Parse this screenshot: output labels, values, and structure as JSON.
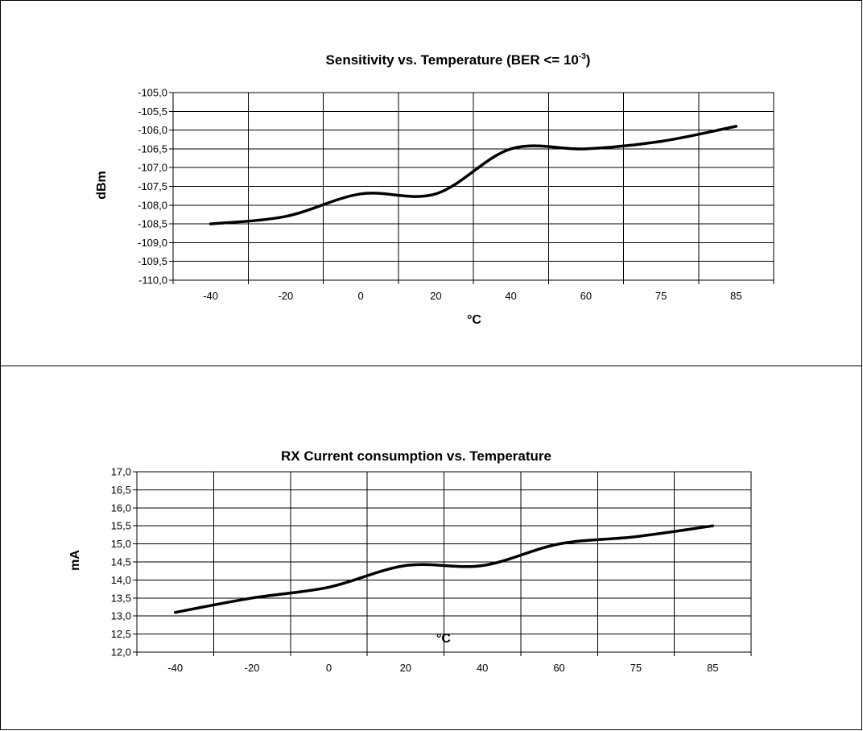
{
  "chart_data": [
    {
      "type": "line",
      "title": "Sensitivity vs. Temperature (BER <= 10",
      "title_superscript": "-3",
      "title_suffix": ")",
      "xlabel": "°C",
      "ylabel": "dBm",
      "categories": [
        "-40",
        "-20",
        "0",
        "20",
        "40",
        "60",
        "75",
        "85"
      ],
      "x": [
        -40,
        -20,
        0,
        20,
        40,
        60,
        75,
        85
      ],
      "y_tick_labels": [
        "-105,0",
        "-105,5",
        "-106,0",
        "-106,5",
        "-107,0",
        "-107,5",
        "-108,0",
        "-108,5",
        "-109,0",
        "-109,5",
        "-110,0"
      ],
      "ylim": [
        -110,
        -105
      ],
      "grid": true,
      "series": [
        {
          "values": [
            -108.5,
            -108.3,
            -107.7,
            -107.7,
            -106.5,
            -106.5,
            -106.3,
            -105.9
          ]
        }
      ]
    },
    {
      "type": "line",
      "title": "RX Current consumption vs. Temperature",
      "xlabel": "°C",
      "ylabel": "mA",
      "categories": [
        "-40",
        "-20",
        "0",
        "20",
        "40",
        "60",
        "75",
        "85"
      ],
      "x": [
        -40,
        -20,
        0,
        20,
        40,
        60,
        75,
        85
      ],
      "y_tick_labels": [
        "17,0",
        "16,5",
        "16,0",
        "15,5",
        "15,0",
        "14,5",
        "14,0",
        "13,5",
        "13,0",
        "12,5",
        "12,0"
      ],
      "ylim": [
        12,
        17
      ],
      "grid": true,
      "series": [
        {
          "values": [
            13.1,
            13.5,
            13.8,
            14.4,
            14.4,
            15.0,
            15.2,
            15.5
          ]
        }
      ]
    }
  ]
}
